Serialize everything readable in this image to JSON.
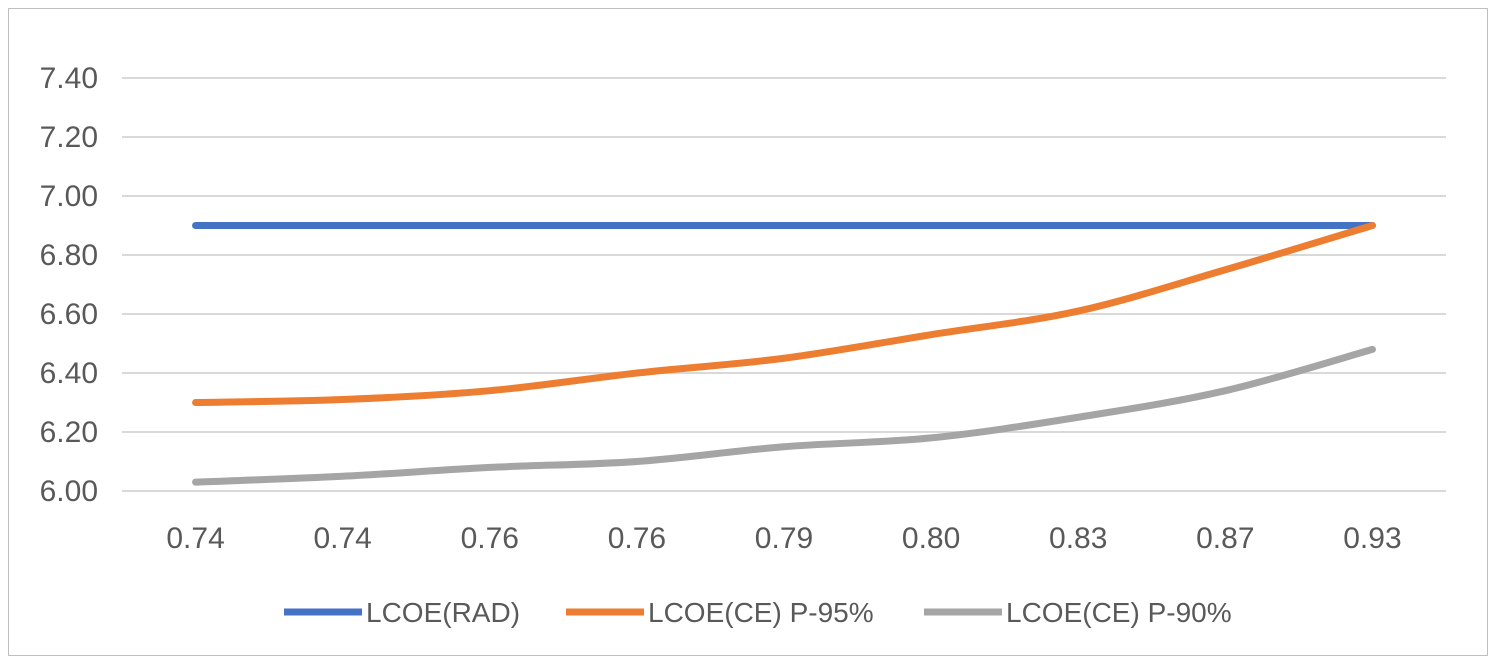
{
  "chart_data": {
    "type": "line",
    "categories": [
      "0.74",
      "0.74",
      "0.76",
      "0.76",
      "0.79",
      "0.80",
      "0.83",
      "0.87",
      "0.93"
    ],
    "y_ticks": [
      "6.00",
      "6.20",
      "6.40",
      "6.60",
      "6.80",
      "7.00",
      "7.20",
      "7.40"
    ],
    "ylim": [
      6.0,
      7.4
    ],
    "grid": true,
    "legend_position": "bottom",
    "series": [
      {
        "name": "LCOE(RAD)",
        "color": "#4472c4",
        "values": [
          6.9,
          6.9,
          6.9,
          6.9,
          6.9,
          6.9,
          6.9,
          6.9,
          6.9
        ]
      },
      {
        "name": "LCOE(CE) P-95%",
        "color": "#ed7d31",
        "values": [
          6.3,
          6.31,
          6.34,
          6.4,
          6.45,
          6.53,
          6.61,
          6.75,
          6.9
        ]
      },
      {
        "name": "LCOE(CE) P-90%",
        "color": "#a5a5a5",
        "values": [
          6.03,
          6.05,
          6.08,
          6.1,
          6.15,
          6.18,
          6.25,
          6.34,
          6.48
        ]
      }
    ]
  }
}
